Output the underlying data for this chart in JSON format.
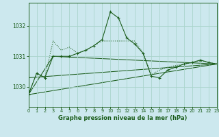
{
  "title": "Graphe pression niveau de la mer (hPa)",
  "bg_color": "#cce8ee",
  "grid_color": "#aad4cc",
  "line_color": "#1a5c1a",
  "x_ticks": [
    0,
    1,
    2,
    3,
    4,
    5,
    6,
    7,
    8,
    9,
    10,
    11,
    12,
    13,
    14,
    15,
    16,
    17,
    18,
    19,
    20,
    21,
    22,
    23
  ],
  "y_ticks": [
    1030,
    1031,
    1032
  ],
  "ylim": [
    1029.35,
    1032.75
  ],
  "xlim": [
    0,
    23
  ],
  "dotted_y": [
    1029.75,
    1030.45,
    1030.3,
    1031.5,
    1031.2,
    1031.3,
    1031.1,
    1031.2,
    1031.35,
    1031.5,
    1031.5,
    1031.5,
    1031.5,
    1031.5,
    1031.1,
    1030.4,
    1030.55,
    1030.65,
    1030.7,
    1030.75,
    1030.8,
    1030.85,
    1030.8,
    1030.75
  ],
  "solid_y": [
    1029.75,
    1030.45,
    1030.3,
    1031.0,
    1031.0,
    1031.0,
    1031.1,
    1031.2,
    1031.35,
    1031.55,
    1032.45,
    1032.25,
    1031.6,
    1031.4,
    1031.1,
    1030.35,
    1030.3,
    1030.55,
    1030.65,
    1030.75,
    1030.8,
    1030.88,
    1030.8,
    1030.75
  ],
  "trend1_x": [
    0,
    3,
    23
  ],
  "trend1_y": [
    1029.75,
    1031.0,
    1030.75
  ],
  "trend2_x": [
    0,
    23
  ],
  "trend2_y": [
    1029.75,
    1030.75
  ],
  "trend3_x": [
    0,
    23
  ],
  "trend3_y": [
    1030.3,
    1030.75
  ]
}
